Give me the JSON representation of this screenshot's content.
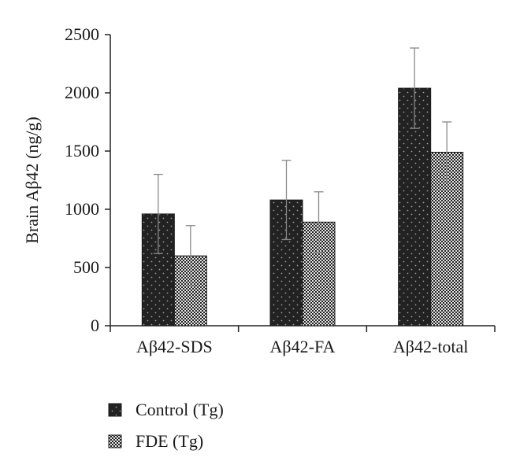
{
  "chart_data": {
    "type": "bar",
    "title": "",
    "ylabel": "Brain Aβ42 (ng/g)",
    "xlabel": "",
    "ylim": [
      0,
      2500
    ],
    "yticks": [
      0,
      500,
      1000,
      1500,
      2000,
      2500
    ],
    "ytick_labels": [
      "0",
      "500",
      "1000",
      "1500",
      "2000",
      "2500"
    ],
    "categories": [
      "Aβ42-SDS",
      "Aβ42-FA",
      "Aβ42-total"
    ],
    "series": [
      {
        "name": "Control (Tg)",
        "values": [
          960,
          1080,
          2040
        ],
        "error": [
          340,
          340,
          345
        ],
        "color": "#222222",
        "pattern": "sparse-dots"
      },
      {
        "name": "FDE (Tg)",
        "values": [
          600,
          890,
          1490
        ],
        "error": [
          260,
          260,
          260
        ],
        "color": "#222222",
        "pattern": "checker"
      }
    ],
    "grid": false,
    "legend": {
      "position": "bottom-left"
    },
    "error_bar_color": "#888888"
  }
}
